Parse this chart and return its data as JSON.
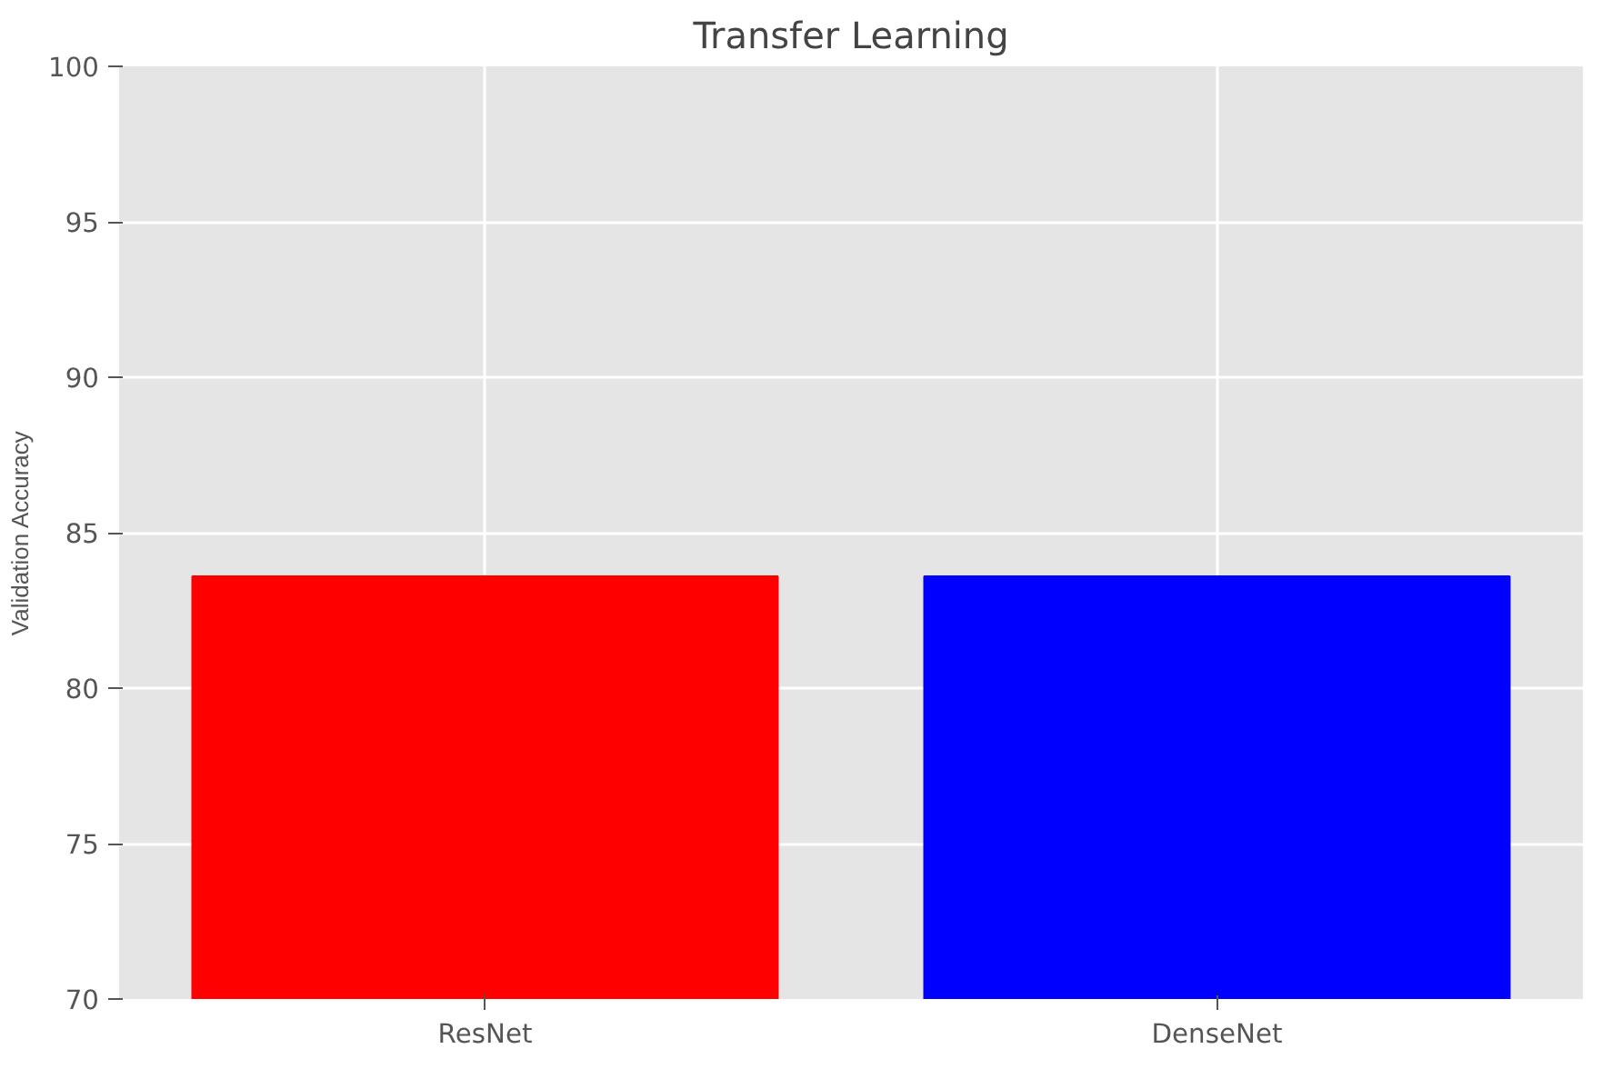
{
  "chart_data": {
    "type": "bar",
    "title": "Transfer Learning",
    "ylabel": "Validation Accuracy",
    "categories": [
      "ResNet",
      "DenseNet"
    ],
    "values": [
      83.6,
      83.6
    ],
    "colors": [
      "#ff0000",
      "#0000ff"
    ],
    "ylim": [
      70,
      100
    ],
    "yticks": [
      70,
      75,
      80,
      85,
      90,
      95,
      100
    ],
    "grid": true
  }
}
